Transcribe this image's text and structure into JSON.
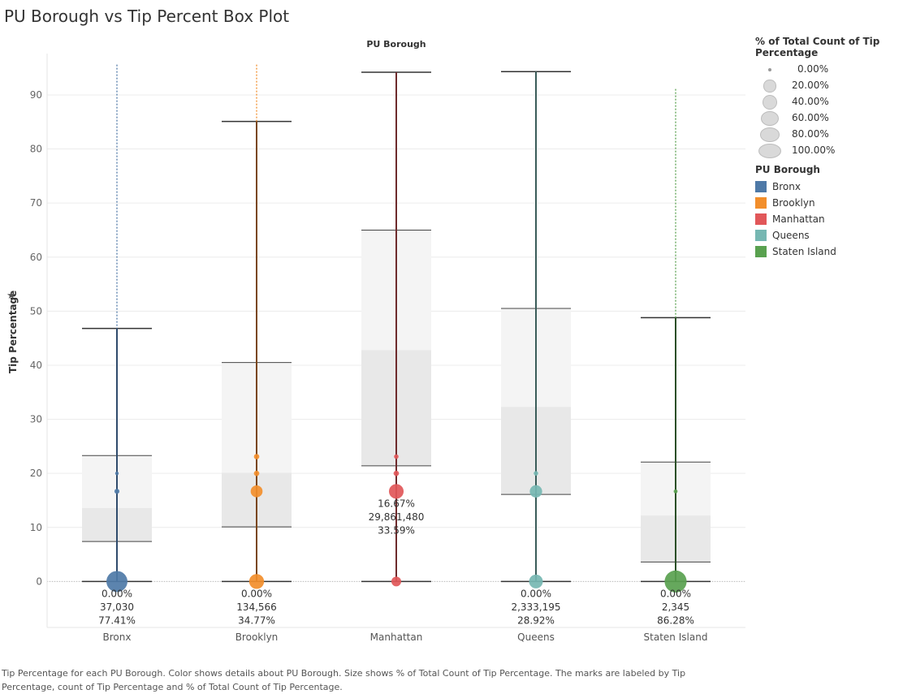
{
  "title": "PU Borough vs Tip Percent Box Plot",
  "caption": "Tip Percentage for each PU Borough.  Color shows details about PU Borough.  Size shows % of Total Count of Tip Percentage.  The marks are labeled by Tip Percentage, count of Tip Percentage and % of Total Count of Tip Percentage.",
  "legend": {
    "size_title": "% of Total Count of Tip Percentage",
    "size_items": [
      "0.00%",
      "20.00%",
      "40.00%",
      "60.00%",
      "80.00%",
      "100.00%"
    ],
    "color_title": "PU Borough",
    "color_items": [
      {
        "label": "Bronx",
        "color": "#4e79a7"
      },
      {
        "label": "Brooklyn",
        "color": "#f28e2b"
      },
      {
        "label": "Manhattan",
        "color": "#e15759"
      },
      {
        "label": "Queens",
        "color": "#76b7b2"
      },
      {
        "label": "Staten Island",
        "color": "#59a14f"
      }
    ]
  },
  "chart_data": {
    "type": "box",
    "title": "PU Borough vs Tip Percent Box Plot",
    "column_header": "PU Borough",
    "ylabel": "Tip Percentage",
    "ylim": [
      -9,
      98
    ],
    "yticks": [
      0,
      10,
      20,
      30,
      40,
      50,
      60,
      70,
      80,
      90
    ],
    "categories": [
      "Bronx",
      "Brooklyn",
      "Manhattan",
      "Queens",
      "Staten Island"
    ],
    "series": [
      {
        "name": "Bronx",
        "color": "#4e79a7",
        "line_color": "#2f4b6c",
        "whisker_low": 0,
        "q1": 7.4,
        "median": 13.6,
        "q3": 23.3,
        "whisker_high": 46.8,
        "max_outlier": 95.6,
        "points": [
          {
            "y": 0,
            "pct": 77.41
          },
          {
            "y": 16.67,
            "pct": 1.5
          },
          {
            "y": 20,
            "pct": 0.3
          }
        ],
        "label": {
          "y": 0,
          "lines": [
            "0.00%",
            "37,030",
            "77.41%"
          ]
        }
      },
      {
        "name": "Brooklyn",
        "color": "#f28e2b",
        "line_color": "#7a4614",
        "whisker_low": 0,
        "q1": 10.1,
        "median": 20.1,
        "q3": 40.5,
        "whisker_high": 85.1,
        "max_outlier": 95.6,
        "points": [
          {
            "y": 0,
            "pct": 34.77
          },
          {
            "y": 16.67,
            "pct": 20
          },
          {
            "y": 20,
            "pct": 2
          },
          {
            "y": 23.1,
            "pct": 2
          }
        ],
        "label": {
          "y": 0,
          "lines": [
            "0.00%",
            "134,566",
            "34.77%"
          ]
        }
      },
      {
        "name": "Manhattan",
        "color": "#e15759",
        "line_color": "#6e2b2c",
        "whisker_low": 0,
        "q1": 21.4,
        "median": 42.8,
        "q3": 65.0,
        "whisker_high": 94.2,
        "max_outlier": null,
        "points": [
          {
            "y": 0,
            "pct": 12
          },
          {
            "y": 16.67,
            "pct": 33.59
          },
          {
            "y": 20,
            "pct": 2
          },
          {
            "y": 23.1,
            "pct": 1
          }
        ],
        "label": {
          "y": 16.67,
          "lines": [
            "16.67%",
            "29,861,480",
            "33.59%"
          ]
        }
      },
      {
        "name": "Queens",
        "color": "#76b7b2",
        "line_color": "#3a5c59",
        "whisker_low": 0,
        "q1": 16.1,
        "median": 32.3,
        "q3": 50.5,
        "whisker_high": 94.3,
        "max_outlier": null,
        "points": [
          {
            "y": 0,
            "pct": 28.92
          },
          {
            "y": 16.67,
            "pct": 22
          },
          {
            "y": 20,
            "pct": 1
          }
        ],
        "label": {
          "y": 0,
          "lines": [
            "0.00%",
            "2,333,195",
            "28.92%"
          ]
        }
      },
      {
        "name": "Staten Island",
        "color": "#59a14f",
        "line_color": "#2b4f27",
        "whisker_low": 0,
        "q1": 3.6,
        "median": 12.2,
        "q3": 22.1,
        "whisker_high": 48.8,
        "max_outlier": 91.1,
        "points": [
          {
            "y": 0,
            "pct": 86.28
          },
          {
            "y": 16.67,
            "pct": 0.5
          }
        ],
        "label": {
          "y": 0,
          "lines": [
            "0.00%",
            "2,345",
            "86.28%"
          ]
        }
      }
    ]
  }
}
